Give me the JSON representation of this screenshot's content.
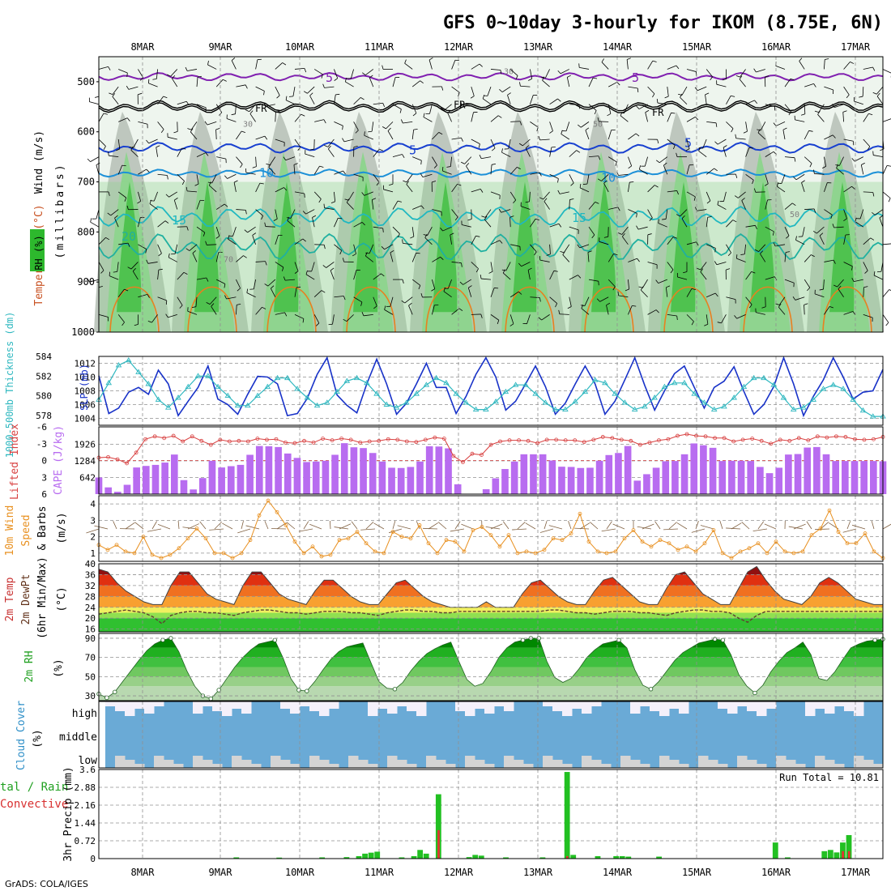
{
  "title": "GFS 0~10day 3-hourly for IKOM (8.75E, 6N)",
  "credit": "GrADS: COLA/IGES",
  "colors": {
    "rh_green": "#2db82d",
    "rh_light": "#8fd48f",
    "rh_grey": "#b8c2b8",
    "slp": "#1832c8",
    "thickness": "#30b8c0",
    "cape": "#b86cf0",
    "lifted": "#d84040",
    "wind10": "#e89020",
    "precip_total": "#22c022",
    "precip_conv": "#e83030",
    "cloud": "#6aaad6"
  },
  "panels": {
    "upper": {
      "ylabel_wind": "Wind (m/s)",
      "ylabel_temp": "Temperature (°C)",
      "ylabel_rh": "RH (%)",
      "ylabel_mb": "(millibars)"
    },
    "slp": {
      "ylabel_thick": "1000-500mb Thickness (dm)",
      "ylabel_slp": "SLP (mb)"
    },
    "cape": {
      "ylabel_li": "Lifted Index",
      "ylabel_cape": "CAPE (J/kg)"
    },
    "wind": {
      "ylabel_1": "10m Wind",
      "ylabel_2": "Speed",
      "ylabel_3": "& Barbs",
      "ylabel_unit": "(m/s)"
    },
    "temp": {
      "ylabel_1": "2m Temp",
      "ylabel_2": "2m DewPt",
      "ylabel_3": "(6hr Min/Max)",
      "ylabel_unit": "(°C)"
    },
    "rh": {
      "ylabel": "2m RH",
      "ylabel_unit": "(%)"
    },
    "cloud": {
      "ylabel": "Cloud Cover",
      "ylabel_unit": "(%)"
    },
    "precip": {
      "ylabel_rain_left": "tal / Rain",
      "ylabel_conv_left": "Convective",
      "ylabel": "3hr Precip (mm)",
      "run_total_label": "Run Total = 10.81"
    }
  },
  "chart_data": [
    {
      "type": "heatmap",
      "name_hint": "upper-air",
      "x": [
        "8MAR",
        "9MAR",
        "10MAR",
        "11MAR",
        "12MAR",
        "13MAR",
        "14MAR",
        "15MAR",
        "16MAR",
        "17MAR"
      ],
      "y_ticks": [
        "500",
        "600",
        "700",
        "800",
        "900",
        "1000"
      ],
      "ylim": [
        1000,
        450
      ],
      "rh_contour_labels": [
        "30",
        "50",
        "70"
      ],
      "temp_contour_labels": [
        "5",
        "10",
        "15",
        "20",
        "FR"
      ],
      "grid": true
    },
    {
      "type": "line",
      "name_hint": "slp-thickness",
      "left_ticks": [
        "578",
        "580",
        "582",
        "584"
      ],
      "right_ticks": [
        "1004",
        "1006",
        "1008",
        "1010",
        "1012"
      ],
      "slp_ylim": [
        1003,
        1013
      ],
      "thick_ylim": [
        577,
        584
      ],
      "series": [
        {
          "values": [
            1010.2,
            1004.7,
            1005.5,
            1007.8,
            1008.5,
            1007.5,
            1011.0,
            1009.0,
            1004.4,
            1006.5,
            1008.5,
            1011.6,
            1006.8,
            1006.0,
            1004.6,
            1007.5,
            1010.1,
            1010.0,
            1009.0,
            1004.4,
            1004.7,
            1006.9,
            1010.4,
            1012.8,
            1007.4,
            1005.9,
            1004.8,
            1009.0,
            1012.6,
            1009.0,
            1004.6,
            1006.2,
            1009.0,
            1012.0,
            1008.5,
            1008.5,
            1004.7,
            1007.2,
            1010.4,
            1012.8,
            1010.0,
            1005.2,
            1006.5,
            1009.0,
            1011.6,
            1008.6,
            1004.6,
            1006.2,
            1009.0,
            1011.6,
            1009.0,
            1004.6,
            1006.5,
            1009.6,
            1012.8,
            1008.8,
            1005.2,
            1008.0,
            1010.5,
            1011.6,
            1008.5,
            1005.5,
            1008.5,
            1009.4,
            1011.5,
            1007.9,
            1004.6,
            1006.0,
            1008.6,
            1012.8,
            1009.0,
            1004.4,
            1007.2,
            1009.6,
            1012.8,
            1010.0,
            1006.8,
            1007.8,
            1008.0,
            1011.1
          ]
        },
        {
          "values": [
            579.6,
            581.3,
            583.1,
            583.6,
            582.4,
            581.2,
            579.6,
            578.8,
            579.8,
            580.9,
            582.0,
            582.0,
            580.9,
            580.0,
            579.0,
            579.0,
            580.0,
            580.9,
            581.8,
            581.8,
            580.7,
            579.8,
            579.0,
            579.3,
            580.4,
            581.5,
            581.8,
            581.3,
            580.2,
            579.1,
            578.8,
            579.3,
            580.2,
            581.1,
            581.8,
            581.3,
            580.2,
            579.3,
            578.6,
            578.6,
            579.4,
            580.4,
            581.1,
            581.1,
            580.2,
            579.3,
            578.6,
            578.6,
            579.4,
            580.4,
            581.6,
            581.3,
            580.2,
            579.3,
            578.6,
            578.9,
            579.8,
            580.9,
            581.3,
            581.3,
            580.2,
            579.3,
            578.6,
            578.9,
            579.8,
            580.9,
            581.8,
            581.8,
            581.1,
            579.8,
            578.6,
            578.8,
            579.6,
            580.7,
            581.1,
            580.7,
            579.6,
            578.5,
            577.9,
            577.9
          ]
        }
      ]
    },
    {
      "type": "bar",
      "name_hint": "cape-li",
      "left_ticks": [
        "-6",
        "-3",
        "0",
        "3",
        "6"
      ],
      "right_ticks": [
        "642",
        "1284",
        "1926"
      ],
      "cape_ylim": [
        0,
        2600
      ],
      "li_ylim": [
        6,
        -6
      ],
      "series": [
        {
          "values": [
            642,
            260,
            90,
            360,
            1030,
            1090,
            1130,
            1220,
            1530,
            540,
            180,
            620,
            1290,
            1030,
            1080,
            1130,
            1520,
            1860,
            1850,
            1820,
            1570,
            1400,
            1240,
            1260,
            1290,
            1520,
            1970,
            1810,
            1780,
            1590,
            1260,
            1020,
            1010,
            1050,
            1260,
            1850,
            1840,
            1770,
            380,
            0,
            0,
            190,
            610,
            970,
            1260,
            1540,
            1540,
            1540,
            1300,
            1060,
            1050,
            1010,
            1020,
            1290,
            1510,
            1590,
            1860,
            520,
            770,
            1020,
            1270,
            1280,
            1540,
            1960,
            1890,
            1790,
            1280,
            1290,
            1290,
            1280,
            1050,
            810,
            1020,
            1530,
            1550,
            1800,
            1820,
            1540,
            1280,
            1280,
            1280,
            1280,
            1280,
            1270
          ]
        },
        {
          "values": [
            -0.5,
            -0.6,
            -0.2,
            0.5,
            -1.4,
            -3.8,
            -4.3,
            -4.0,
            -4.4,
            -3.4,
            -4.3,
            -3.5,
            -2.8,
            -3.7,
            -3.4,
            -3.5,
            -3.4,
            -3.9,
            -3.7,
            -3.8,
            -3.2,
            -3.1,
            -3.5,
            -3.2,
            -3.9,
            -3.6,
            -3.9,
            -3.7,
            -3.2,
            -3.4,
            -3.5,
            -3.8,
            -3.7,
            -3.4,
            -3.3,
            -3.7,
            -4.1,
            -3.9,
            -0.8,
            0.3,
            -1.2,
            -1.0,
            -2.8,
            -3.4,
            -3.6,
            -3.6,
            -3.5,
            -3.1,
            -3.7,
            -3.7,
            -3.6,
            -3.6,
            -3.3,
            -3.7,
            -4.2,
            -4.0,
            -3.7,
            -3.5,
            -2.8,
            -3.2,
            -3.6,
            -3.8,
            -4.4,
            -4.7,
            -4.4,
            -4.3,
            -4.0,
            -4.0,
            -3.4,
            -3.7,
            -3.9,
            -3.5,
            -3.0,
            -3.7,
            -3.5,
            -4.0,
            -3.6,
            -4.3,
            -4.1,
            -4.3,
            -4.2,
            -3.8,
            -3.7,
            -3.8,
            -4.2
          ]
        }
      ]
    },
    {
      "type": "line",
      "name_hint": "wind10",
      "y_ticks": [
        "1",
        "2",
        "3",
        "4"
      ],
      "ylim": [
        0.5,
        4.5
      ],
      "values": [
        1.5,
        1.2,
        1.5,
        1.1,
        1.0,
        2.0,
        0.9,
        0.7,
        0.9,
        1.3,
        1.9,
        2.5,
        1.9,
        1.0,
        1.0,
        0.7,
        1.0,
        1.8,
        3.3,
        4.2,
        3.5,
        2.7,
        1.7,
        1.0,
        1.4,
        0.8,
        0.9,
        1.8,
        1.9,
        2.3,
        1.6,
        1.1,
        1.0,
        2.3,
        2.0,
        1.9,
        2.7,
        1.6,
        1.0,
        1.8,
        1.7,
        1.1,
        2.4,
        2.6,
        2.1,
        1.4,
        2.1,
        1.0,
        1.1,
        1.0,
        1.2,
        1.9,
        1.8,
        2.2,
        3.4,
        1.7,
        1.1,
        1.0,
        1.1,
        1.9,
        2.4,
        1.7,
        1.4,
        1.8,
        1.6,
        1.2,
        1.4,
        1.1,
        1.6,
        2.4,
        1.0,
        0.7,
        1.1,
        1.3,
        1.6,
        1.0,
        1.7,
        1.1,
        1.0,
        1.1,
        2.1,
        2.5,
        3.6,
        2.3,
        1.6,
        1.6,
        2.2,
        1.1,
        0.7
      ]
    },
    {
      "type": "area",
      "name_hint": "temp",
      "y_ticks": [
        "16",
        "20",
        "24",
        "28",
        "32",
        "36",
        "40"
      ],
      "ylim": [
        15,
        40
      ],
      "series": [
        {
          "values": [
            38,
            37,
            33,
            30,
            28,
            26,
            25,
            25,
            32,
            37,
            37,
            33,
            29,
            27,
            26,
            25,
            32,
            37,
            37,
            33,
            29,
            27,
            26,
            25,
            30,
            34,
            34,
            31,
            28,
            26,
            25,
            25,
            29,
            33,
            34,
            31,
            28,
            26,
            25,
            24,
            24,
            24,
            24,
            26,
            24,
            24,
            24,
            29,
            33,
            34,
            31,
            28,
            26,
            25,
            25,
            30,
            34,
            35,
            32,
            29,
            26,
            25,
            25,
            31,
            36,
            37,
            33,
            29,
            27,
            25,
            25,
            31,
            37,
            39,
            34,
            30,
            27,
            26,
            25,
            28,
            33,
            35,
            33,
            30,
            27,
            26,
            25,
            25
          ]
        },
        {
          "values": [
            21.5,
            22,
            22.5,
            23,
            22.5,
            22,
            20.5,
            18,
            21,
            22,
            22.5,
            22.5,
            22,
            22,
            21.5,
            21,
            22,
            22.5,
            23,
            23,
            22.5,
            22,
            22,
            21.5,
            22,
            22.5,
            22.5,
            22.5,
            22,
            22,
            21.5,
            21,
            22,
            22.5,
            23,
            23,
            22.5,
            22.5,
            22,
            22,
            22.5,
            22.5,
            22.5,
            22.5,
            22.5,
            22.5,
            22.5,
            22.5,
            22.5,
            22.5,
            23,
            23,
            22.5,
            22,
            22,
            21.5,
            22,
            22.5,
            22.5,
            22.5,
            22,
            22,
            21.5,
            21,
            22,
            22.5,
            23,
            23,
            22.5,
            22.5,
            22,
            20,
            18.5,
            21,
            22.5,
            22.5,
            22.5,
            22.5,
            22.5,
            22.5,
            22.5,
            22.5,
            22.5,
            22.5,
            22.5,
            22.5,
            22.5,
            22.5
          ]
        }
      ]
    },
    {
      "type": "area",
      "name_hint": "rh2m",
      "y_ticks": [
        "30",
        "50",
        "70",
        "90"
      ],
      "ylim": [
        25,
        95
      ],
      "values": [
        32,
        28,
        34,
        45,
        56,
        67,
        77,
        84,
        88,
        90,
        76,
        56,
        40,
        30,
        27,
        36,
        48,
        60,
        70,
        78,
        84,
        86,
        88,
        70,
        48,
        36,
        35,
        45,
        57,
        68,
        76,
        81,
        83,
        85,
        65,
        45,
        38,
        37,
        44,
        56,
        66,
        74,
        79,
        83,
        86,
        66,
        47,
        40,
        43,
        55,
        70,
        80,
        86,
        88,
        90,
        90,
        66,
        49,
        44,
        48,
        58,
        70,
        78,
        84,
        86,
        88,
        80,
        57,
        41,
        37,
        45,
        56,
        67,
        75,
        80,
        85,
        87,
        89,
        88,
        73,
        52,
        40,
        33,
        41,
        55,
        66,
        75,
        80,
        86,
        73,
        48,
        46,
        55,
        68,
        80,
        84,
        87,
        88,
        89
      ]
    },
    {
      "type": "area",
      "name_hint": "cloud",
      "y_ticks": [
        "high",
        "middle",
        "low"
      ]
    },
    {
      "type": "bar",
      "name_hint": "precip",
      "y_ticks": [
        "0",
        "0.72",
        "1.44",
        "2.16",
        "2.88",
        "3.6"
      ],
      "ylim": [
        0,
        3.6
      ],
      "run_total": 10.81
    }
  ]
}
